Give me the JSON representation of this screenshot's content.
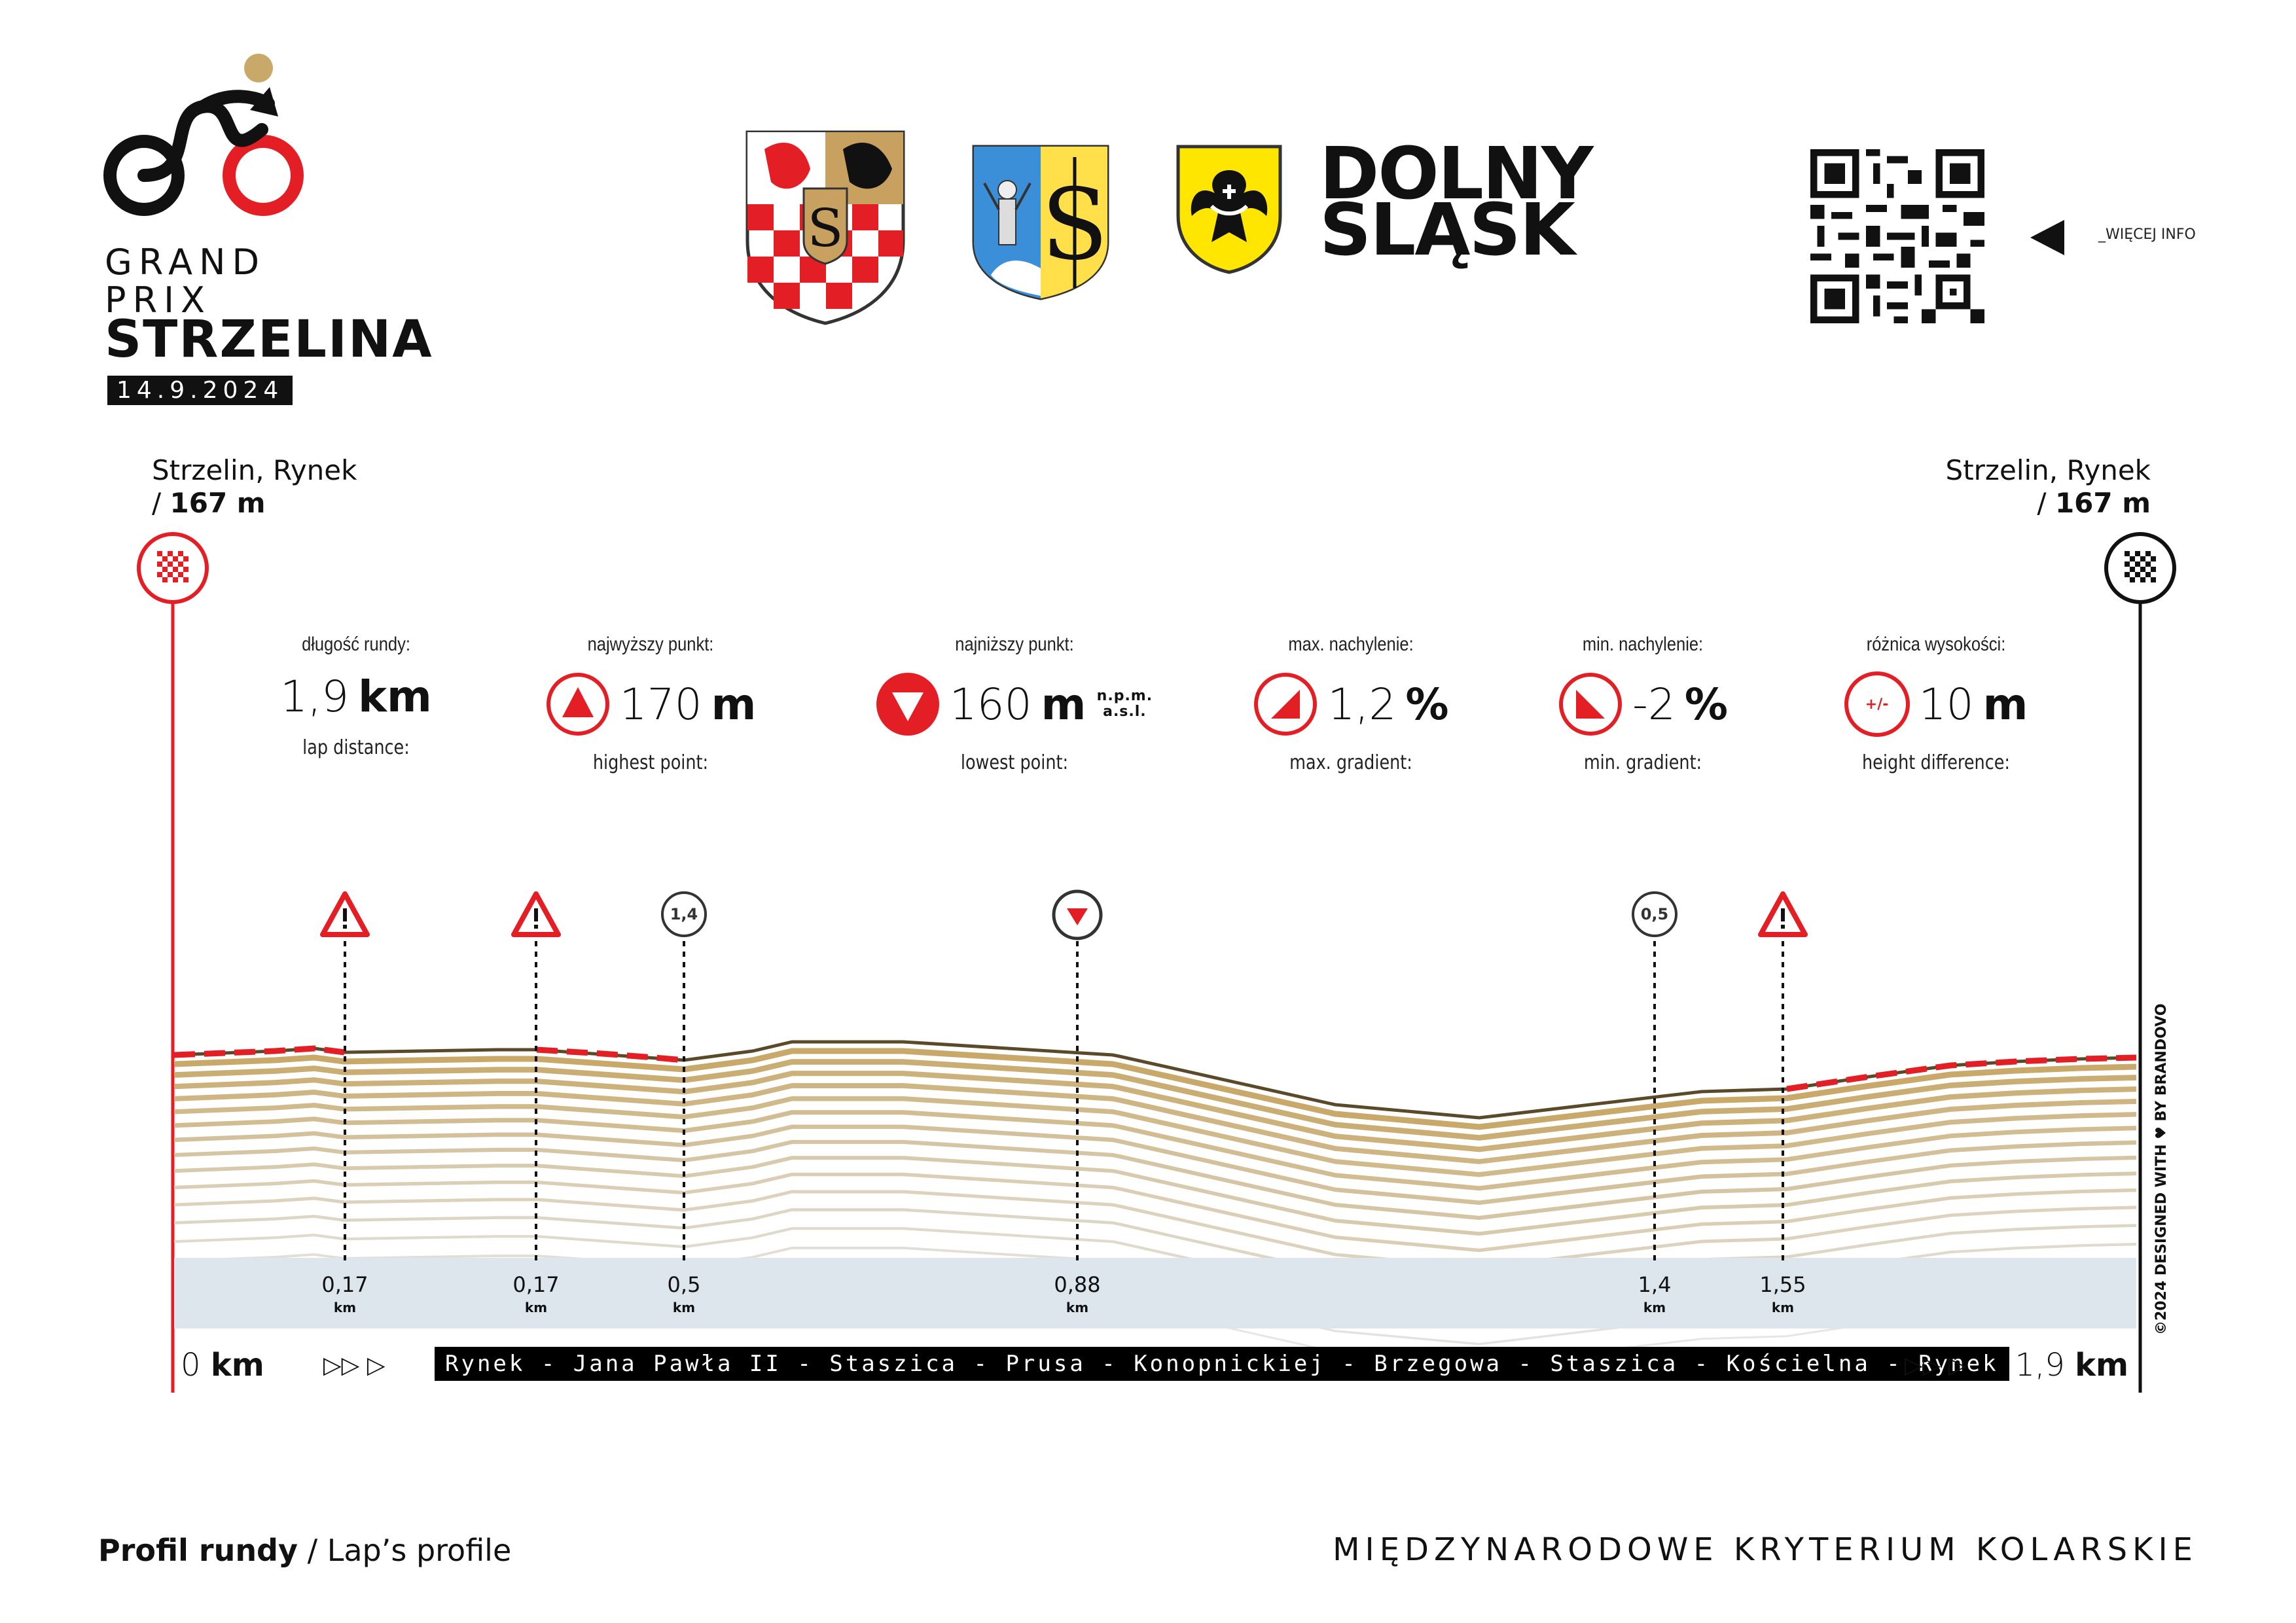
{
  "logo": {
    "line1": "GRAND",
    "line2": "PRIX",
    "line3": "STRZELINA",
    "date": "14.9.2024",
    "icon": "cyclist-logo-icon"
  },
  "sponsor": {
    "region_line1": "DOLNY",
    "region_line2": "ŚLĄSK",
    "crests": [
      "powiat-crest-icon",
      "strzelin-crest-icon",
      "dolny-slask-crest-icon"
    ]
  },
  "qr": {
    "note": "_WIĘCEJ INFO",
    "icon": "qr-code-icon"
  },
  "start": {
    "place": "Strzelin, Rynek",
    "elevation_prefix": "/ ",
    "elevation": "167 m"
  },
  "finish": {
    "place": "Strzelin, Rynek",
    "elevation_prefix": "/ ",
    "elevation": "167 m"
  },
  "stats": [
    {
      "pl": "długość rundy:",
      "value": "1,9",
      "unit": "km",
      "en": "lap distance:",
      "icon": ""
    },
    {
      "pl": "najwyższy punkt:",
      "value": "170",
      "unit": "m",
      "en": "highest point:",
      "icon": "highest-point-icon"
    },
    {
      "pl": "najniższy punkt:",
      "value": "160",
      "unit": "m",
      "unit_note": "n.p.m. a.s.l.",
      "en": "lowest point:",
      "icon": "lowest-point-icon"
    },
    {
      "pl": "max. nachylenie:",
      "value": "1,2",
      "unit": "%",
      "en": "max. gradient:",
      "icon": "max-gradient-icon"
    },
    {
      "pl": "min. nachylenie:",
      "value": "-2",
      "unit": "%",
      "en": "min. gradient:",
      "icon": "min-gradient-icon"
    },
    {
      "pl": "różnica wysokości:",
      "value": "10",
      "unit": "m",
      "en": "height difference:",
      "icon": "height-difference-icon",
      "icon_text": "+/-"
    }
  ],
  "markers": [
    {
      "type": "warning",
      "km": "0,17",
      "unit": "km"
    },
    {
      "type": "warning",
      "km": "0,17",
      "unit": "km"
    },
    {
      "type": "gradient",
      "badge": "1,4",
      "km": "0,5",
      "unit": "km"
    },
    {
      "type": "lowest",
      "km": "0,88",
      "unit": "km"
    },
    {
      "type": "gradient",
      "badge": "0,5",
      "km": "1,4",
      "unit": "km"
    },
    {
      "type": "warning",
      "km": "1,55",
      "unit": "km"
    }
  ],
  "route": {
    "start_num": "0",
    "start_unit": "km",
    "end_num": "1,9",
    "end_unit": "km",
    "streets": "Rynek - Jana Pawła II - Staszica - Prusa - Konopnickiej - Brzegowa - Staszica - Kościelna - Rynek",
    "arrows": "▷▷ ▷"
  },
  "colors": {
    "red": "#e31e24",
    "gold": "#c8a96a",
    "dark": "#111111",
    "band": "#dde5ed"
  },
  "footer": {
    "left_bold": "Profil rundy",
    "left_rest": " / Lap’s profile",
    "right": "MIĘDZYNARODOWE KRYTERIUM KOLARSKIE",
    "side_credit": "©2024 DESIGNED WITH ♥ BY BRANDOVO"
  }
}
